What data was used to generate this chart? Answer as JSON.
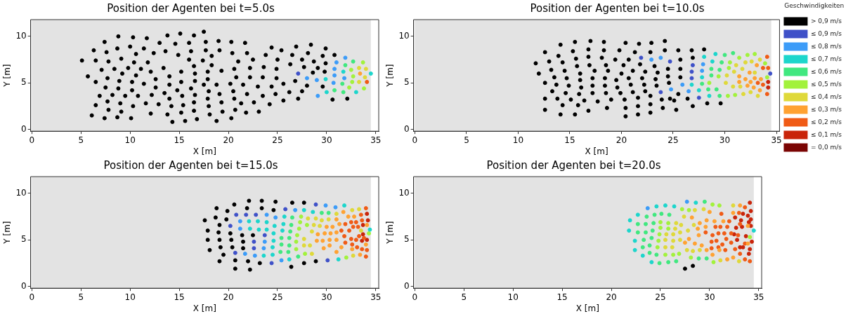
{
  "chart_data": [
    {
      "type": "scatter",
      "title": "Position der Agenten bei t=5.0s",
      "xlabel": "X [m]",
      "ylabel": "Y [m]",
      "xlim": [
        -0.12,
        35.3
      ],
      "ylim": [
        -0.2,
        11.8
      ],
      "xticks": [
        0,
        5,
        10,
        15,
        20,
        25,
        30,
        35
      ],
      "yticks": [
        0,
        5,
        10
      ],
      "grid": false,
      "marker": "circle",
      "bands": [
        {
          "axis": "x",
          "from": 0,
          "to": 34.5,
          "color": "#e3e3e3"
        }
      ],
      "series": [
        {
          "color": "#000000",
          "x": [
            5.1,
            5.7,
            6.1,
            6.3,
            6.5,
            6.5,
            6.5,
            6.9,
            7.1,
            7.4,
            7.5,
            7.4,
            7.6,
            7.7,
            7.8,
            7.7,
            7.8,
            8.2,
            8.4,
            8.7,
            8.8,
            8.7,
            8.8,
            8.9,
            9.0,
            9.1,
            9.1,
            9.2,
            9.5,
            9.8,
            10.0,
            10.1,
            10.2,
            10.2,
            10.3,
            10.3,
            10.4,
            10.6,
            10.6,
            10.8,
            11.1,
            11.4,
            11.4,
            11.6,
            11.7,
            11.8,
            12.1,
            12.2,
            12.1,
            12.4,
            12.6,
            12.6,
            12.9,
            13.0,
            13.4,
            13.5,
            13.6,
            13.8,
            13.8,
            14.0,
            14.0,
            14.0,
            14.2,
            14.3,
            14.6,
            14.8,
            14.9,
            15.1,
            15.2,
            15.2,
            15.3,
            15.4,
            15.2,
            15.6,
            16.0,
            16.0,
            16.2,
            16.2,
            16.5,
            16.5,
            16.6,
            16.6,
            16.6,
            16.5,
            16.5,
            16.8,
            17.4,
            17.5,
            17.5,
            17.7,
            17.7,
            17.9,
            17.9,
            18.0,
            17.9,
            18.0,
            18.1,
            18.3,
            18.3,
            18.8,
            18.8,
            19.0,
            19.1,
            19.1,
            19.3,
            19.3,
            19.4,
            20.2,
            20.3,
            20.3,
            20.4,
            20.5,
            20.6,
            20.6,
            20.7,
            20.8,
            21.0,
            21.3,
            21.5,
            21.7,
            21.8,
            21.9,
            21.9,
            22.2,
            22.2,
            22.5,
            22.6,
            23.0,
            23.1,
            23.5,
            23.5,
            23.6,
            23.8,
            24.2,
            24.4,
            24.4,
            24.9,
            24.9,
            24.8,
            25.0,
            25.4,
            25.6,
            25.6,
            26.2,
            26.3,
            26.5,
            26.8,
            26.9,
            27.1,
            27.5,
            27.5,
            27.7,
            28.0,
            28.1,
            28.4,
            28.6,
            28.7,
            29.1,
            29.6,
            29.6,
            29.8,
            29.9,
            29.9,
            30.6,
            30.8,
            32.1
          ],
          "values": [
            7.4,
            5.7,
            1.5,
            8.5,
            7.4,
            5.1,
            2.6,
            3.6,
            6.4,
            9.4,
            4.5,
            1.2,
            8.3,
            5.5,
            7.3,
            3.0,
            2.1,
            3.7,
            6.5,
            8.7,
            10.0,
            1.3,
            4.4,
            5.2,
            2.8,
            7.6,
            1.9,
            6.0,
            3.6,
            6.6,
            8.9,
            1.2,
            5.1,
            4.2,
            9.9,
            2.5,
            7.2,
            8.1,
            5.8,
            3.6,
            6.5,
            8.7,
            4.9,
            2.8,
            9.8,
            7.2,
            6.2,
            3.7,
            1.7,
            8.2,
            5.4,
            4.5,
            2.7,
            9.3,
            6.6,
            3.9,
            8.4,
            10.1,
            1.6,
            5.7,
            4.8,
            3.3,
            2.5,
            0.8,
            9.2,
            4.2,
            8.0,
            10.3,
            6.2,
            5.1,
            3.6,
            2.6,
            1.8,
            0.9,
            9.3,
            7.5,
            4.4,
            8.4,
            10.1,
            6.8,
            6.0,
            5.2,
            3.7,
            2.9,
            2.0,
            1.1,
            7.4,
            10.5,
            4.8,
            9.4,
            8.5,
            6.2,
            5.4,
            4.1,
            3.3,
            2.5,
            1.6,
            7.9,
            6.9,
            4.8,
            0.9,
            9.5,
            8.5,
            3.8,
            6.3,
            2.9,
            1.9,
            4.9,
            9.4,
            1.2,
            8.2,
            4.1,
            6.5,
            3.3,
            2.1,
            5.6,
            7.3,
            2.8,
            4.8,
            9.3,
            1.8,
            8.2,
            3.8,
            6.6,
            5.6,
            7.5,
            2.9,
            4.6,
            1.9,
            5.6,
            3.6,
            6.7,
            8.0,
            2.7,
            4.6,
            8.8,
            5.5,
            6.5,
            3.8,
            7.5,
            8.5,
            4.9,
            3.1,
            4.0,
            7.0,
            8.0,
            5.2,
            8.9,
            3.3,
            4.1,
            7.5,
            6.7,
            4.7,
            8.2,
            9.1,
            6.1,
            7.3,
            6.6,
            7.9,
            4.6,
            6.2,
            8.7,
            7.1,
            3.2,
            8.0,
            3.3
          ]
        },
        {
          "color": "#3f51c8",
          "x": [
            27.1
          ],
          "values": [
            6.0
          ]
        },
        {
          "color": "#3c9cf8",
          "x": [
            28.0,
            29.0,
            29.1,
            31.0,
            30.8,
            30.8,
            30.7,
            31.9,
            31.8
          ],
          "values": [
            5.5,
            5.3,
            3.6,
            7.2,
            6.5,
            5.8,
            5.0,
            7.7,
            5.5
          ]
        },
        {
          "color": "#1dd6cc",
          "x": [
            29.9,
            30.0,
            31.7,
            33.0,
            34.5
          ],
          "values": [
            5.4,
            4.0,
            6.2,
            4.0,
            6.0
          ]
        },
        {
          "color": "#40e87f",
          "x": [
            31.9,
            30.8,
            31.6,
            31.7,
            32.7
          ],
          "values": [
            6.9,
            4.2,
            4.9,
            4.0,
            7.3
          ]
        },
        {
          "color": "#a2f23c",
          "x": [
            32.5,
            32.7,
            32.3,
            32.6,
            33.7,
            33.8
          ],
          "values": [
            6.4,
            5.7,
            4.5,
            5.1,
            7.2,
            4.4
          ]
        },
        {
          "color": "#dfd93a",
          "x": [
            33.3,
            34.0,
            33.9,
            33.3
          ],
          "values": [
            6.6,
            6.5,
            5.6,
            5.1
          ]
        },
        {
          "color": "#ffa232",
          "x": [
            33.4
          ],
          "values": [
            6.0
          ]
        },
        {
          "color": "#f05b16",
          "x": [
            34.1
          ],
          "values": [
            5.1
          ]
        }
      ]
    },
    {
      "type": "scatter",
      "title": "Position der Agenten bei t=10.0s",
      "xlabel": "X [m]",
      "ylabel": "Y [m]",
      "xlim": [
        -0.12,
        35.3
      ],
      "ylim": [
        -0.2,
        11.8
      ],
      "xticks": [
        0,
        5,
        10,
        15,
        20,
        25,
        30,
        35
      ],
      "yticks": [
        0,
        5,
        10
      ],
      "grid": false,
      "marker": "circle",
      "legend": "right",
      "legend_title": "Geschwindigkeiten",
      "bands": [
        {
          "axis": "x",
          "from": 0,
          "to": 34.5,
          "color": "#e3e3e3"
        }
      ],
      "series": [
        {
          "name": "> 0,9 m/s",
          "color": "#000000",
          "x": [
            11.7,
            12.0,
            12.6,
            12.6,
            12.6,
            12.6,
            13.0,
            13.2,
            13.3,
            13.5,
            13.7,
            13.8,
            13.9,
            14.1,
            14.1,
            14.3,
            14.3,
            14.5,
            14.6,
            14.7,
            14.9,
            15.1,
            15.3,
            15.5,
            15.5,
            15.6,
            15.7,
            15.8,
            15.9,
            16.0,
            16.0,
            16.1,
            16.4,
            16.8,
            16.8,
            17.0,
            16.8,
            16.9,
            17.2,
            17.2,
            17.2,
            17.4,
            17.7,
            18.1,
            18.3,
            18.3,
            18.4,
            18.4,
            18.5,
            18.5,
            18.7,
            18.6,
            19.0,
            19.4,
            19.5,
            19.6,
            19.8,
            20.0,
            19.9,
            20.2,
            20.4,
            20.3,
            20.4,
            20.4,
            20.7,
            20.7,
            20.9,
            21.1,
            21.1,
            21.3,
            21.6,
            21.6,
            21.6,
            21.7,
            21.8,
            22.0,
            22.2,
            22.3,
            22.3,
            22.8,
            22.8,
            22.8,
            22.8,
            22.9,
            23.2,
            23.3,
            23.4,
            23.5,
            23.9,
            24.0,
            24.2,
            24.2,
            24.5,
            24.5,
            24.6,
            24.7,
            25.1,
            25.3,
            25.5,
            25.5,
            25.7,
            25.7,
            25.7,
            26.4,
            26.8,
            26.9,
            26.9,
            28.0,
            28.3,
            29.6
          ],
          "values": [
            7.1,
            6.0,
            8.3,
            5.0,
            3.3,
            2.1,
            7.3,
            6.4,
            4.1,
            5.6,
            4.8,
            3.3,
            7.9,
            9.1,
            1.6,
            7.2,
            2.6,
            6.3,
            3.9,
            5.5,
            4.7,
            3.2,
            8.4,
            9.4,
            1.6,
            7.6,
            6.8,
            2.6,
            3.8,
            6.0,
            5.3,
            4.5,
            3.1,
            8.6,
            7.8,
            9.5,
            2.0,
            6.9,
            3.9,
            5.5,
            4.7,
            6.3,
            3.0,
            7.7,
            8.5,
            9.4,
            5.5,
            4.7,
            6.9,
            3.9,
            6.3,
            2.3,
            3.2,
            7.5,
            5.3,
            4.5,
            8.5,
            6.0,
            3.9,
            6.9,
            9.3,
            3.2,
            2.3,
            1.4,
            7.5,
            5.5,
            4.8,
            4.0,
            6.3,
            8.3,
            3.4,
            2.5,
            1.6,
            9.2,
            7.0,
            5.5,
            4.8,
            6.2,
            4.1,
            3.6,
            2.7,
            1.8,
            8.3,
            9.3,
            6.8,
            5.4,
            4.7,
            6.1,
            3.2,
            2.3,
            9.5,
            8.5,
            6.5,
            5.7,
            5.0,
            3.3,
            3.1,
            2.1,
            3.8,
            8.5,
            7.5,
            6.5,
            5.6,
            3.3,
            8.5,
            7.7,
            2.5,
            8.6,
            2.8,
            2.8
          ]
        },
        {
          "name": "≤ 0,9 m/s",
          "color": "#3f51c8",
          "x": [
            21.9,
            24.7,
            23.8,
            26.9,
            26.8,
            26.8,
            27.5,
            34.4
          ],
          "values": [
            7.7,
            7.3,
            4.0,
            6.9,
            6.2,
            5.5,
            3.4,
            6.0
          ]
        },
        {
          "name": "≤ 0,8 m/s",
          "color": "#3c9cf8",
          "x": [
            22.9,
            23.8,
            25.9,
            24.8,
            26.5,
            27.9,
            27.8
          ],
          "values": [
            7.5,
            7.7,
            4.8,
            4.3,
            4.1,
            7.0,
            6.3
          ]
        },
        {
          "name": "≤ 0,7 m/s",
          "color": "#1dd6cc",
          "x": [
            26.8,
            27.8,
            28.0,
            27.5,
            28.8,
            29.1,
            28.5
          ],
          "values": [
            4.8,
            5.6,
            7.8,
            4.2,
            7.3,
            8.1,
            3.6
          ]
        },
        {
          "name": "≤ 0,6 m/s",
          "color": "#40e87f",
          "x": [
            27.8,
            28.4,
            28.7,
            28.7,
            29.5,
            29.7,
            30.0,
            30.8,
            29.5,
            29.2
          ],
          "values": [
            4.9,
            4.3,
            6.5,
            5.8,
            3.6,
            7.2,
            8.0,
            8.2,
            6.4,
            4.3
          ]
        },
        {
          "name": "≤ 0,5 m/s",
          "color": "#a2f23c",
          "x": [
            28.5,
            29.4,
            30.3,
            30.4,
            30.5,
            31.4,
            32.2,
            32.9,
            31.0,
            33.9,
            34.1
          ],
          "values": [
            5.0,
            5.7,
            3.6,
            6.6,
            7.2,
            7.7,
            8.0,
            8.1,
            3.7,
            7.1,
            5.6
          ]
        },
        {
          "name": "≤ 0,4 m/s",
          "color": "#dfd93a",
          "x": [
            30.1,
            30.2,
            30.8,
            30.9,
            31.1,
            31.7,
            32.0,
            31.5,
            31.8,
            32.5,
            33.2,
            33.4,
            32.6,
            32.9
          ],
          "values": [
            5.0,
            5.8,
            4.6,
            6.2,
            6.9,
            6.5,
            7.2,
            4.6,
            3.8,
            4.0,
            3.6,
            7.5,
            7.3,
            6.1
          ]
        },
        {
          "name": "≤ 0,3 m/s",
          "color": "#ffa232",
          "x": [
            31.4,
            31.4,
            32.0,
            32.2,
            32.4,
            32.5,
            32.8,
            32.9,
            33.1,
            33.5,
            33.4
          ],
          "values": [
            5.7,
            5.1,
            5.4,
            4.7,
            6.1,
            5.1,
            4.5,
            5.5,
            6.9,
            5.4,
            4.2
          ]
        },
        {
          "name": "≤ 0,2 m/s",
          "color": "#f05b16",
          "x": [
            33.2,
            33.7,
            33.7,
            34.1,
            34.2,
            34.1
          ],
          "values": [
            5.0,
            4.8,
            6.6,
            7.8,
            6.6,
            3.8
          ]
        },
        {
          "name": "≤ 0,1 m/s",
          "color": "#c9240a",
          "x": [
            34.2,
            34.2
          ],
          "values": [
            5.1,
            4.5
          ]
        },
        {
          "name": "= 0,0 m/s",
          "color": "#7a0403"
        }
      ]
    },
    {
      "type": "scatter",
      "title": "Position der Agenten bei t=15.0s",
      "xlabel": "X [m]",
      "ylabel": "Y [m]",
      "xlim": [
        -0.12,
        35.3
      ],
      "ylim": [
        -0.2,
        11.8
      ],
      "xticks": [
        0,
        5,
        10,
        15,
        20,
        25,
        30,
        35
      ],
      "yticks": [
        0,
        5,
        10
      ],
      "grid": false,
      "marker": "circle",
      "bands": [
        {
          "axis": "x",
          "from": 0,
          "to": 34.5,
          "color": "#e3e3e3"
        }
      ],
      "series": [
        {
          "color": "#000000",
          "x": [
            17.6,
            17.9,
            17.9,
            18.1,
            18.8,
            18.7,
            19.1,
            19.0,
            19.1,
            19.2,
            19.5,
            19.1,
            19.9,
            19.8,
            20.2,
            20.3,
            20.4,
            20.7,
            20.7,
            20.6,
            21.4,
            21.5,
            21.5,
            21.9,
            22.0,
            22.1,
            22.2,
            22.5,
            23.2,
            23.4,
            23.4,
            24.6,
            24.8,
            26.5,
            26.4,
            27.7,
            27.7,
            28.9
          ],
          "values": [
            7.1,
            6.0,
            5.0,
            3.9,
            8.4,
            7.4,
            6.6,
            5.8,
            5.0,
            4.2,
            3.4,
            2.7,
            8.1,
            7.2,
            5.7,
            5.0,
            4.2,
            2.8,
            1.9,
            8.8,
            5.5,
            4.8,
            4.1,
            8.4,
            2.7,
            9.2,
            1.8,
            5.5,
            2.5,
            9.2,
            8.4,
            8.2,
            9.1,
            9.0,
            2.1,
            9.0,
            2.5,
            2.7
          ]
        },
        {
          "color": "#3f51c8",
          "x": [
            20.8,
            21.8,
            22.8,
            20.2,
            23.7,
            22.6,
            22.6,
            20.7,
            24.4,
            25.8,
            28.9,
            30.1
          ],
          "values": [
            7.7,
            7.7,
            7.7,
            6.5,
            5.5,
            4.8,
            4.1,
            3.6,
            2.5,
            8.3,
            8.8,
            2.8
          ]
        },
        {
          "color": "#3c9cf8",
          "x": [
            21.2,
            21.2,
            23.9,
            24.8,
            23.7,
            23.6,
            21.7,
            22.7,
            25.4,
            26.8,
            29.9,
            30.9
          ],
          "values": [
            7.0,
            6.2,
            7.7,
            7.4,
            4.8,
            4.1,
            3.5,
            3.3,
            2.8,
            8.2,
            8.7,
            8.5
          ]
        },
        {
          "color": "#1dd6cc",
          "x": [
            22.1,
            22.2,
            23.0,
            23.1,
            23.9,
            23.9,
            24.6,
            24.6,
            24.5,
            24.5,
            23.6,
            24.7,
            25.7,
            25.6,
            25.5,
            27.7,
            28.6,
            31.8,
            26.2,
            31.2,
            34.4
          ],
          "values": [
            7.0,
            6.2,
            7.0,
            6.1,
            6.9,
            6.1,
            5.7,
            4.9,
            4.2,
            3.4,
            3.3,
            6.5,
            7.5,
            6.7,
            6.0,
            8.2,
            8.0,
            8.7,
            2.9,
            2.9,
            6.1
          ]
        },
        {
          "color": "#40e87f",
          "x": [
            25.4,
            25.4,
            25.3,
            26.2,
            26.2,
            26.1,
            26.3,
            26.4,
            26.5,
            27.1,
            29.5,
            30.2
          ],
          "values": [
            5.2,
            4.5,
            3.7,
            5.2,
            4.4,
            3.7,
            5.9,
            6.6,
            7.4,
            3.2,
            7.9,
            7.9
          ]
        },
        {
          "color": "#a2f23c",
          "x": [
            27.0,
            26.9,
            26.9,
            27.2,
            27.3,
            27.4,
            27.8,
            28.0,
            32.0,
            34.3
          ],
          "values": [
            5.5,
            4.8,
            4.0,
            6.2,
            6.9,
            7.5,
            3.5,
            6.6,
            3.1,
            5.7
          ]
        },
        {
          "color": "#dfd93a",
          "x": [
            27.7,
            27.7,
            28.1,
            28.5,
            28.7,
            28.5,
            28.3,
            28.9,
            29.3,
            29.5,
            30.2,
            31.0,
            32.6,
            33.3,
            32.7,
            33.5
          ],
          "values": [
            5.1,
            4.4,
            7.3,
            5.9,
            6.6,
            3.5,
            4.4,
            7.3,
            6.5,
            7.1,
            7.2,
            7.8,
            8.2,
            8.3,
            3.3,
            6.0
          ]
        },
        {
          "color": "#ffa232",
          "x": [
            29.1,
            29.0,
            29.7,
            29.6,
            29.8,
            30.0,
            30.6,
            30.4,
            30.3,
            30.3,
            31.0,
            31.0,
            31.3,
            31.0,
            31.0,
            31.7,
            32.2,
            31.5,
            32.6,
            32.8,
            33.4,
            34.0,
            34.1
          ],
          "values": [
            5.6,
            4.9,
            4.1,
            4.9,
            5.7,
            6.4,
            6.4,
            5.7,
            5.0,
            4.4,
            7.2,
            3.7,
            6.7,
            5.8,
            5.0,
            8.0,
            7.5,
            4.2,
            4.0,
            7.5,
            3.4,
            4.5,
            6.6
          ]
        },
        {
          "color": "#f05b16",
          "x": [
            31.5,
            31.8,
            31.9,
            31.9,
            32.5,
            32.3,
            32.5,
            32.6,
            32.7,
            33.0,
            33.1,
            33.3,
            33.0,
            33.2,
            33.5,
            33.6,
            33.6,
            33.8,
            34.0,
            34.1,
            34.0
          ],
          "values": [
            6.0,
            5.4,
            4.7,
            6.7,
            6.9,
            6.0,
            5.1,
            4.5,
            6.4,
            5.0,
            4.2,
            5.4,
            6.9,
            6.4,
            7.7,
            7.1,
            4.0,
            5.2,
            8.4,
            3.9,
            3.2
          ]
        },
        {
          "color": "#c9240a",
          "x": [
            33.6,
            34.1,
            34.2,
            33.7,
            34.1,
            33.7
          ],
          "values": [
            4.9,
            7.8,
            7.1,
            6.6,
            5.0,
            5.6
          ]
        }
      ]
    },
    {
      "type": "scatter",
      "title": "Position der Agenten bei t=20.0s",
      "xlabel": "X [m]",
      "ylabel": "Y [m]",
      "xlim": [
        -0.12,
        35.3
      ],
      "ylim": [
        -0.2,
        11.8
      ],
      "xticks": [
        0,
        5,
        10,
        15,
        20,
        25,
        30,
        35
      ],
      "yticks": [
        0,
        5,
        10
      ],
      "grid": false,
      "marker": "circle",
      "bands": [
        {
          "axis": "x",
          "from": 0,
          "to": 34.5,
          "color": "#e3e3e3"
        }
      ],
      "series": [
        {
          "color": "#000000",
          "x": [
            27.5,
            28.3
          ],
          "values": [
            1.9,
            2.2
          ]
        },
        {
          "color": "#3c9cf8",
          "x": [
            23.7,
            27.7
          ],
          "values": [
            8.4,
            9.1
          ]
        },
        {
          "color": "#1dd6cc",
          "x": [
            21.9,
            21.8,
            22.7,
            22.4,
            22.4,
            24.6,
            25.5,
            26.4,
            28.6,
            24.1,
            23.2,
            34.5
          ],
          "values": [
            7.1,
            6.0,
            7.7,
            4.9,
            3.9,
            8.6,
            8.7,
            8.6,
            9.0,
            2.6,
            3.3,
            6.0
          ]
        },
        {
          "color": "#40e87f",
          "x": [
            22.7,
            22.7,
            23.6,
            23.5,
            23.5,
            23.3,
            23.2,
            24.4,
            24.3,
            24.2,
            24.1,
            23.9,
            23.9,
            24.9,
            25.1,
            25.8,
            25.9,
            26.6,
            29.5,
            28.9,
            29.7,
            24.6
          ],
          "values": [
            6.7,
            5.8,
            7.5,
            6.7,
            5.8,
            5.0,
            4.2,
            7.7,
            6.8,
            6.0,
            5.2,
            4.4,
            3.6,
            2.5,
            7.8,
            2.6,
            7.7,
            2.7,
            9.1,
            3.0,
            3.0,
            3.4
          ]
        },
        {
          "color": "#a2f23c",
          "x": [
            25.0,
            25.0,
            24.9,
            24.8,
            24.7,
            25.8,
            25.8,
            25.5,
            26.3,
            26.9,
            27.2,
            27.9,
            28.1,
            30.3,
            31.0,
            30.4,
            34.1
          ],
          "values": [
            6.9,
            6.3,
            5.6,
            4.9,
            4.2,
            6.8,
            6.2,
            3.4,
            3.4,
            3.5,
            8.3,
            8.2,
            3.1,
            8.8,
            8.7,
            2.6,
            5.3
          ]
        },
        {
          "color": "#dfd93a",
          "x": [
            25.6,
            25.5,
            25.5,
            26.6,
            26.5,
            26.3,
            26.3,
            26.2,
            27.1,
            27.0,
            27.0,
            27.7,
            27.4,
            28.3,
            28.5,
            29.4,
            31.1,
            32.4,
            33.0,
            29.0,
            27.8,
            28.4
          ],
          "values": [
            5.6,
            5.0,
            4.2,
            6.8,
            6.2,
            5.6,
            4.9,
            4.2,
            6.6,
            5.8,
            5.0,
            3.9,
            7.5,
            3.8,
            8.2,
            8.3,
            2.8,
            8.7,
            2.7,
            3.9,
            6.0,
            6.6
          ]
        },
        {
          "color": "#ffa232",
          "x": [
            27.5,
            27.9,
            28.2,
            28.5,
            29.0,
            28.8,
            28.9,
            29.2,
            29.7,
            29.7,
            30.0,
            30.3,
            30.5,
            31.4,
            31.8,
            32.4,
            33.1,
            32.4,
            33.9,
            33.9,
            31.0,
            29.6
          ],
          "values": [
            4.7,
            5.1,
            7.4,
            4.6,
            6.8,
            6.2,
            5.5,
            4.4,
            3.9,
            7.1,
            8.0,
            3.4,
            7.0,
            7.0,
            2.9,
            3.1,
            8.7,
            7.9,
            6.5,
            4.6,
            3.9,
            6.4
          ]
        },
        {
          "color": "#f05b16",
          "x": [
            29.6,
            30.3,
            30.2,
            30.2,
            30.9,
            30.7,
            30.9,
            31.2,
            30.6,
            31.1,
            31.5,
            31.3,
            31.6,
            31.8,
            31.7,
            32.0,
            32.2,
            32.2,
            32.6,
            33.0,
            33.1,
            32.9,
            33.1,
            33.6,
            33.6,
            34.1,
            33.6
          ],
          "values": [
            5.8,
            5.5,
            4.8,
            4.1,
            5.7,
            4.9,
            4.2,
            7.8,
            6.4,
            6.4,
            5.7,
            4.5,
            3.9,
            6.4,
            5.1,
            7.0,
            5.7,
            4.7,
            4.0,
            7.9,
            6.7,
            5.5,
            3.5,
            2.9,
            8.5,
            2.7,
            4.6
          ]
        },
        {
          "color": "#c9240a",
          "x": [
            32.6,
            33.2,
            33.3,
            32.7,
            32.5,
            32.8,
            33.1,
            33.4,
            33.9,
            34.0,
            34.1,
            34.2,
            34.2,
            34.2,
            33.7,
            34.3,
            34.1,
            34.0,
            33.4
          ],
          "values": [
            7.4,
            7.1,
            6.4,
            6.3,
            5.6,
            5.0,
            4.2,
            7.8,
            7.6,
            6.9,
            9.0,
            8.1,
            7.2,
            6.5,
            5.4,
            4.8,
            4.0,
            3.5,
            4.2
          ]
        }
      ]
    }
  ]
}
